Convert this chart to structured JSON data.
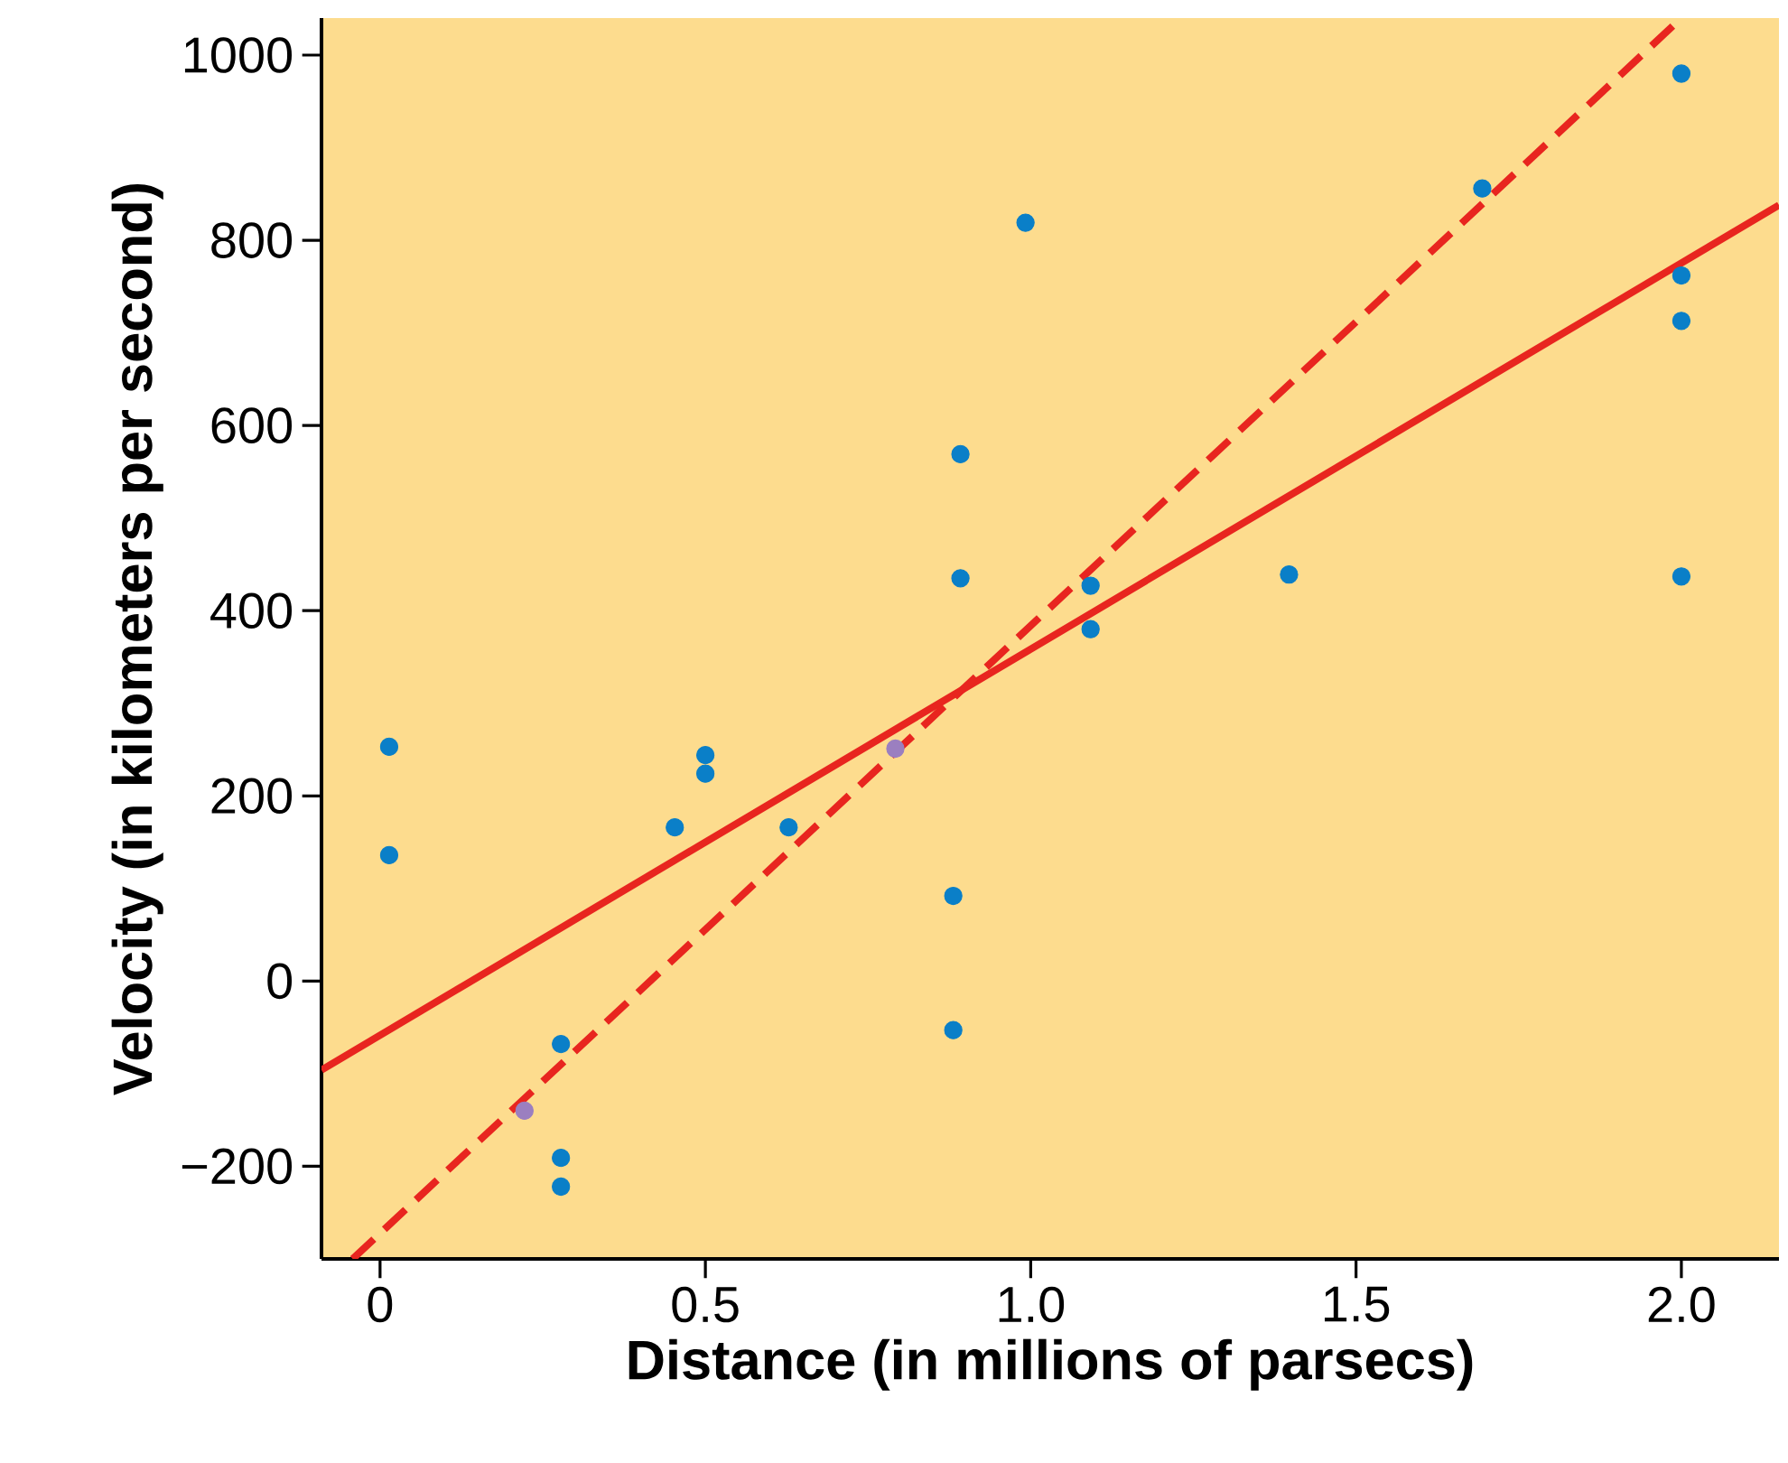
{
  "chart_data": {
    "type": "scatter",
    "xlabel": "Distance (in millions of parsecs)",
    "ylabel": "Velocity (in kilometers per second)",
    "xlim": [
      -0.09,
      2.15
    ],
    "ylim": [
      -300,
      1040
    ],
    "xticks": [
      0,
      0.5,
      {
        "value": 1.0,
        "label": "1.0"
      },
      1.5,
      {
        "value": 2.0,
        "label": "2.0"
      }
    ],
    "yticks": [
      {
        "value": -200,
        "label": "−200"
      },
      0,
      200,
      400,
      600,
      800,
      1000
    ],
    "series": [
      {
        "color": "#0a7fc8",
        "x": [
          0.014,
          0.014,
          0.278,
          0.278,
          0.278,
          0.453,
          0.5,
          0.5,
          0.628,
          0.881,
          0.881,
          0.892,
          0.892,
          0.992,
          1.092,
          1.092,
          1.397,
          1.694,
          2.0,
          2.0,
          2.0,
          2.0
        ],
        "values": [
          253,
          136,
          -68,
          -191,
          -222,
          166,
          244,
          224,
          166,
          92,
          -53,
          569,
          435,
          819,
          427,
          380,
          439,
          856,
          980,
          762,
          713,
          437
        ]
      },
      {
        "color": "#9b7fc0",
        "x": [
          0.222,
          0.792
        ],
        "values": [
          -140,
          251
        ]
      },
      {
        "type": "line",
        "color": "#e8251f",
        "line_style": "solid",
        "x": [
          -0.09,
          2.15
        ],
        "values": [
          -96,
          838
        ]
      },
      {
        "type": "line",
        "color": "#e8251f",
        "line_style": "dashed",
        "x": [
          -0.042,
          2.0
        ],
        "values": [
          -300,
          1040
        ]
      }
    ]
  }
}
